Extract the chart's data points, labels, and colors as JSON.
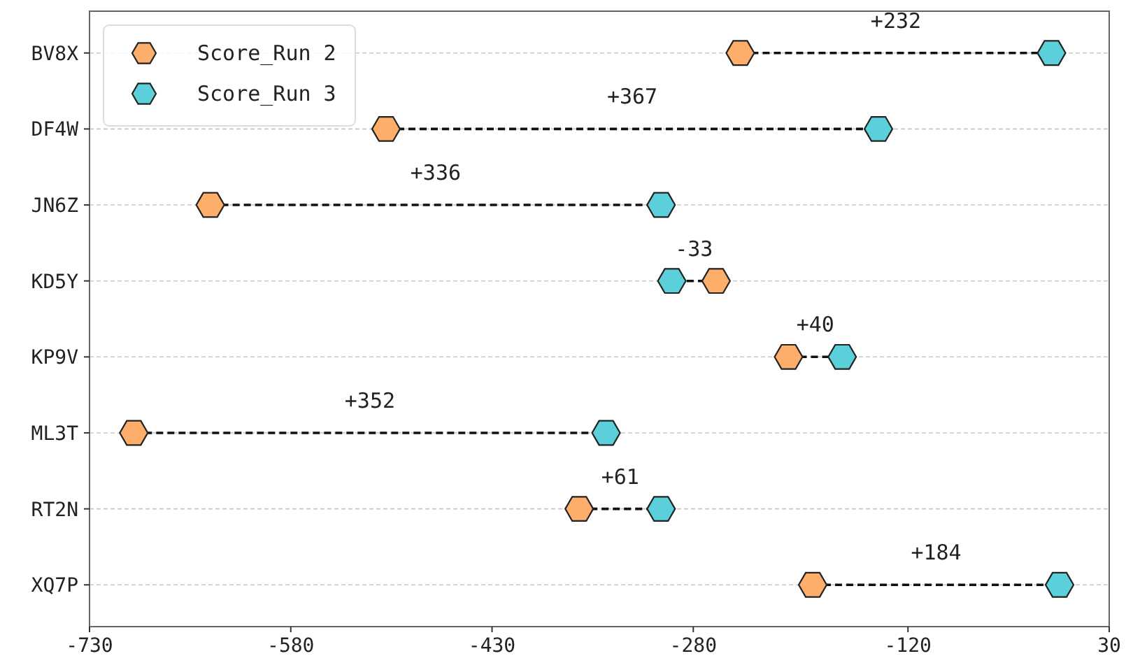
{
  "chart_data": {
    "type": "scatter",
    "orientation": "horizontal",
    "categories": [
      "BV8X",
      "DF4W",
      "JN6Z",
      "KD5Y",
      "KP9V",
      "ML3T",
      "RT2N",
      "XQ7P"
    ],
    "series": [
      {
        "name": "Score_Run 2",
        "color": "#fdae6b",
        "values": [
          -245,
          -509,
          -640,
          -263,
          -209,
          -697,
          -365,
          -191
        ]
      },
      {
        "name": "Score_Run 3",
        "color": "#5bd0da",
        "values": [
          -13,
          -142,
          -304,
          -296,
          -169,
          -345,
          -304,
          -7
        ]
      }
    ],
    "xlim": [
      -730,
      30
    ],
    "xticks": [
      -730,
      -580,
      -430,
      -280,
      -120,
      30
    ],
    "annotations": [
      "+232",
      "+367",
      "+336",
      "-33",
      "+40",
      "+352",
      "+61",
      "+184"
    ],
    "grid": "y",
    "legend": "top left",
    "line_style": "dashed"
  }
}
